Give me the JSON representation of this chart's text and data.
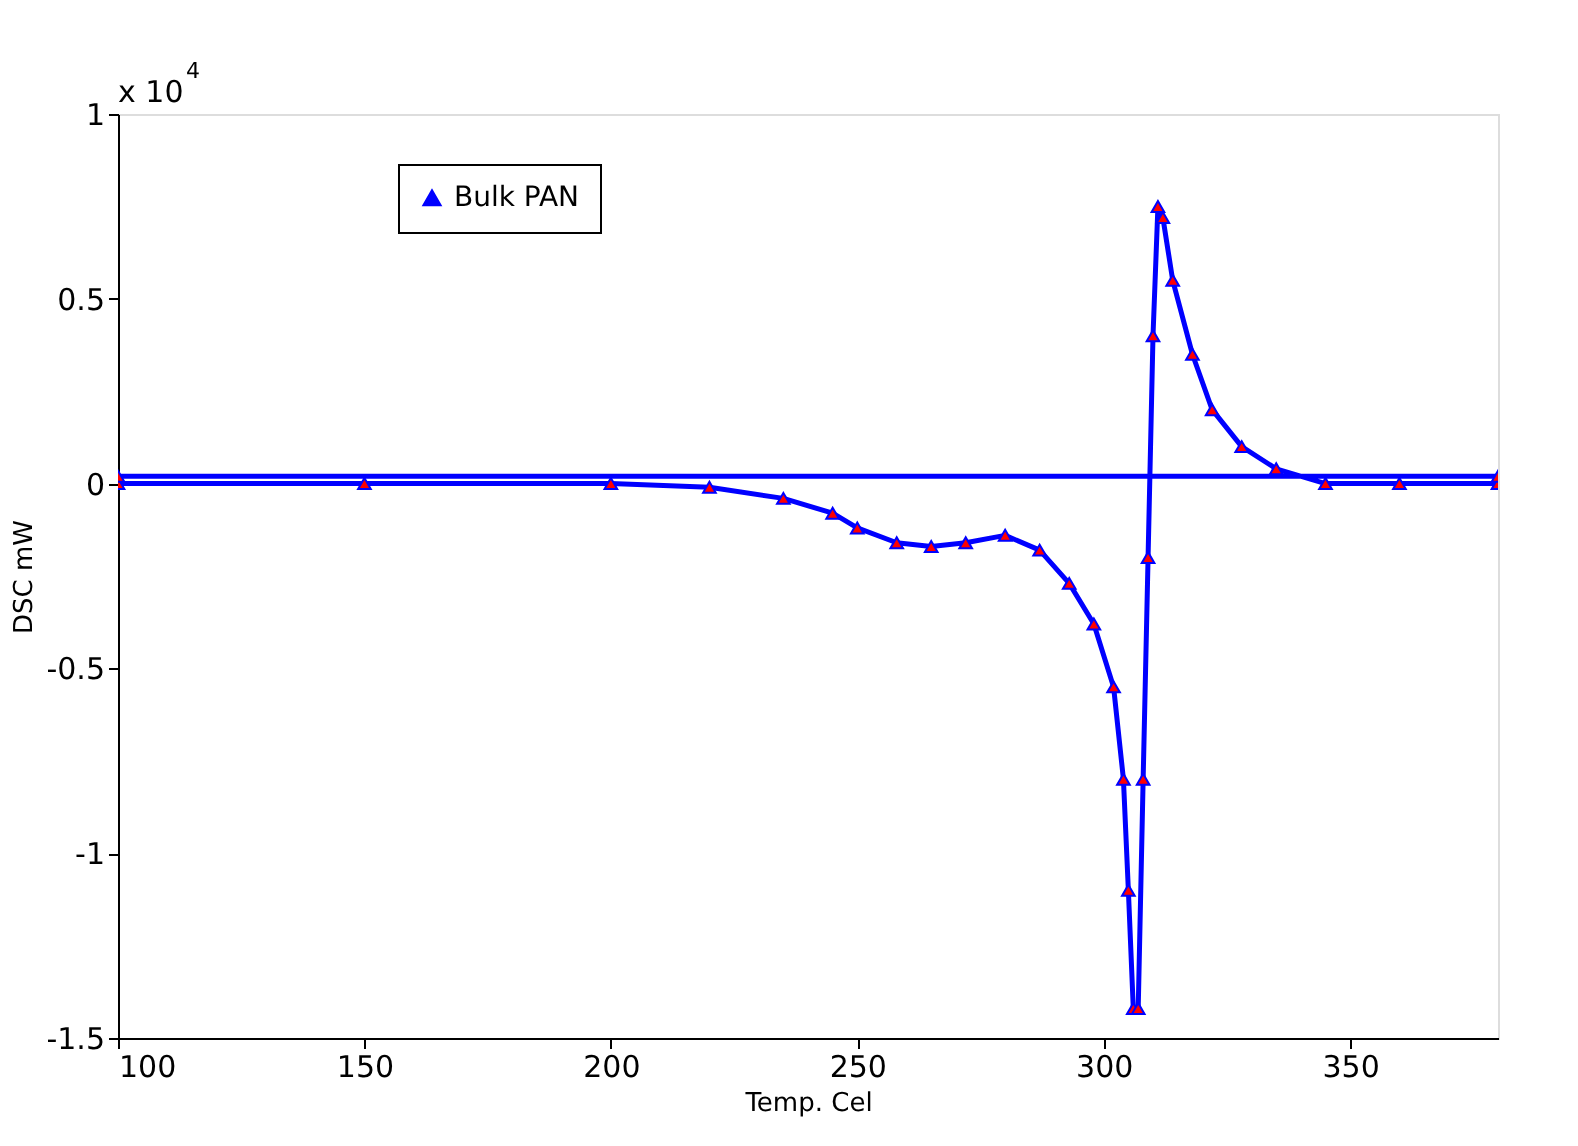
{
  "chart_data": {
    "type": "line",
    "xlabel": "Temp. Cel",
    "ylabel": "DSC mW",
    "annotations": [
      "x 10$^{4}$"
    ],
    "xlim": [
      100,
      380
    ],
    "xticks": [
      100,
      150,
      200,
      250,
      300,
      350
    ],
    "ylim": [
      -1.5,
      1
    ],
    "yticks": [
      -1.5,
      -1,
      -0.5,
      0,
      0.5,
      1
    ],
    "grid": false,
    "legend": "top left",
    "marker": "triangle",
    "line_style": "solid",
    "series": [
      {
        "name": "Bulk PAN",
        "color": "#0000ff",
        "x": [
          100,
          150,
          200,
          220,
          235,
          245,
          250,
          258,
          265,
          272,
          280,
          287,
          293,
          298,
          302,
          304,
          305,
          306,
          307,
          308,
          309,
          310,
          311,
          312,
          314,
          318,
          322,
          328,
          335,
          345,
          360,
          380,
          380,
          100
        ],
        "values": [
          0,
          0,
          0,
          -0.01,
          -0.04,
          -0.08,
          -0.12,
          -0.16,
          -0.17,
          -0.16,
          -0.14,
          -0.18,
          -0.27,
          -0.38,
          -0.55,
          -0.8,
          -1.1,
          -1.42,
          -1.42,
          -0.8,
          -0.2,
          0.4,
          0.75,
          0.72,
          0.55,
          0.35,
          0.2,
          0.1,
          0.04,
          0,
          0,
          0,
          0.02,
          0.02
        ]
      }
    ]
  }
}
